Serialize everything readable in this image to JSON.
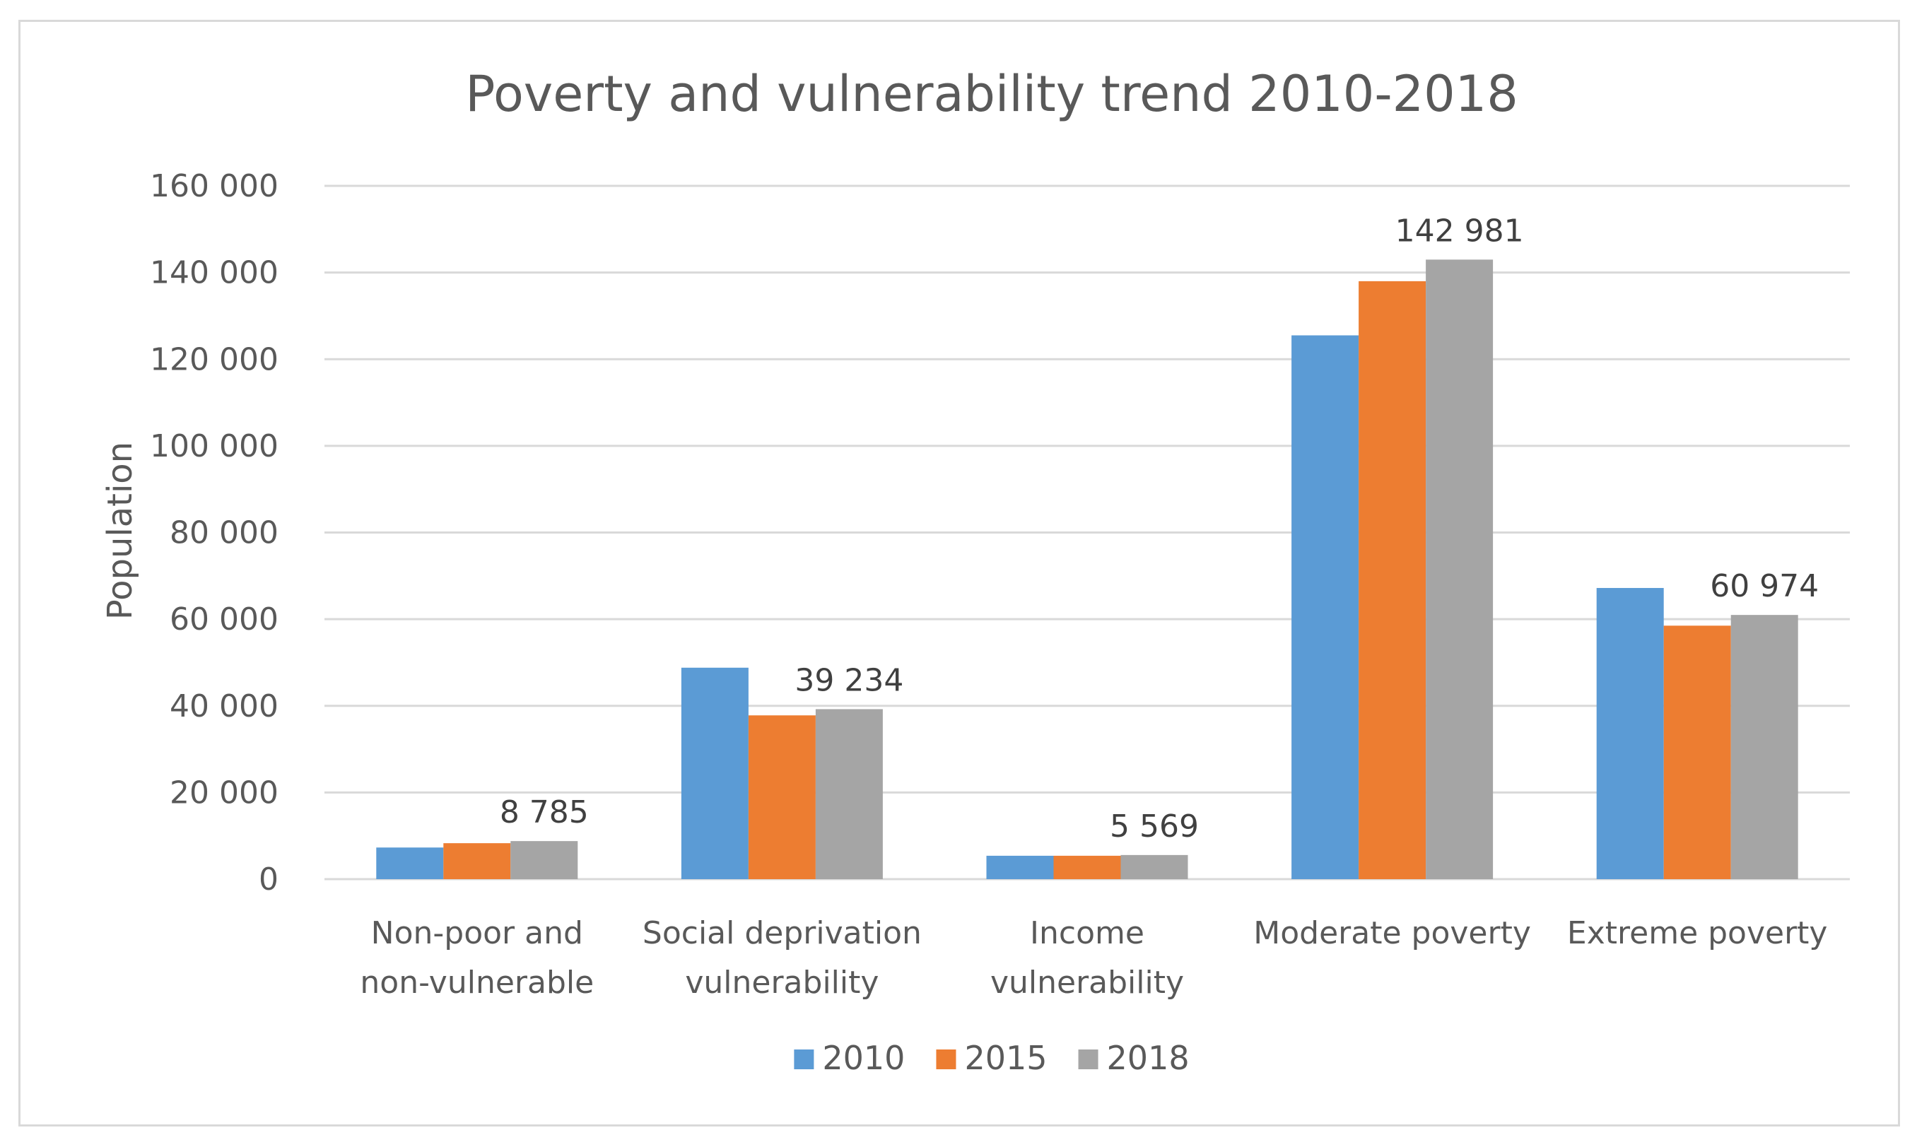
{
  "chart_data": {
    "type": "bar",
    "title": "Poverty and vulnerability trend 2010-2018",
    "xlabel": "",
    "ylabel": "Population",
    "ylim": [
      0,
      160000
    ],
    "yticks": [
      0,
      20000,
      40000,
      60000,
      80000,
      100000,
      120000,
      140000,
      160000
    ],
    "ytick_labels": [
      "0",
      "20 000",
      "40 000",
      "60 000",
      "80 000",
      "100 000",
      "120 000",
      "140 000",
      "160 000"
    ],
    "categories": [
      [
        "Non-poor and",
        "non-vulnerable"
      ],
      [
        "Social deprivation",
        "vulnerability"
      ],
      [
        "Income",
        "vulnerability"
      ],
      [
        "Moderate poverty"
      ],
      [
        "Extreme poverty"
      ]
    ],
    "series": [
      {
        "name": "2010",
        "color": "#5B9BD5",
        "values": [
          7300,
          48800,
          5400,
          125500,
          67200
        ]
      },
      {
        "name": "2015",
        "color": "#ED7D31",
        "values": [
          8300,
          37800,
          5400,
          138000,
          58500
        ]
      },
      {
        "name": "2018",
        "color": "#A5A5A5",
        "values": [
          8785,
          39234,
          5569,
          142981,
          60974
        ]
      }
    ],
    "data_labels": {
      "series": "2018",
      "labels": [
        "8 785",
        "39 234",
        "5 569",
        "142 981",
        "60 974"
      ]
    },
    "grid": true,
    "legend": "bottom"
  }
}
